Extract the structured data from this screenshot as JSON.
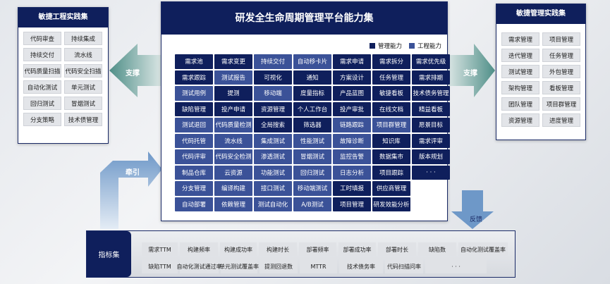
{
  "colors": {
    "management": "#0f1f5c",
    "engineering": "#3b5298",
    "arrow": "#5f9a95"
  },
  "left_panel": {
    "title": "敏捷工程实践集",
    "items": [
      "代码审查",
      "持续集成",
      "持续交付",
      "流水线",
      "代码质量扫描",
      "代码安全扫描",
      "自动化测试",
      "单元测试",
      "回归测试",
      "冒烟测试",
      "分支策略",
      "技术债管理"
    ]
  },
  "right_panel": {
    "title": "敏捷管理实践集",
    "items": [
      "需求管理",
      "项目管理",
      "迭代管理",
      "任务管理",
      "测试管理",
      "外包管理",
      "架构管理",
      "看板管理",
      "团队管理",
      "项目群管理",
      "资源管理",
      "进度管理"
    ]
  },
  "center": {
    "title": "研发全生命周期管理平台能力集",
    "legend": [
      {
        "label": "管理能力",
        "type": "d"
      },
      {
        "label": "工程能力",
        "type": "l"
      }
    ],
    "cells": [
      [
        "需求池",
        "d"
      ],
      [
        "需求变更",
        "d"
      ],
      [
        "持续交付",
        "l"
      ],
      [
        "自动移卡片",
        "l"
      ],
      [
        "需求申请",
        "d"
      ],
      [
        "需求拆分",
        "d"
      ],
      [
        "需求优先级",
        "d"
      ],
      [
        "需求跟踪",
        "d"
      ],
      [
        "测试报告",
        "l"
      ],
      [
        "可视化",
        "d"
      ],
      [
        "通知",
        "d"
      ],
      [
        "方案设计",
        "d"
      ],
      [
        "任务管理",
        "d"
      ],
      [
        "需求排期",
        "d"
      ],
      [
        "测试用例",
        "l"
      ],
      [
        "提测",
        "d"
      ],
      [
        "移动端",
        "l"
      ],
      [
        "度量指标",
        "d"
      ],
      [
        "产品蓝图",
        "d"
      ],
      [
        "敏捷看板",
        "d"
      ],
      [
        "技术债务管理",
        "d"
      ],
      [
        "缺陷管理",
        "d"
      ],
      [
        "投产申请",
        "d"
      ],
      [
        "资源管理",
        "d"
      ],
      [
        "个人工作台",
        "d"
      ],
      [
        "投产审批",
        "d"
      ],
      [
        "在线文档",
        "d"
      ],
      [
        "精益看板",
        "d"
      ],
      [
        "测试退回",
        "l"
      ],
      [
        "代码质量检测",
        "l"
      ],
      [
        "全局搜索",
        "d"
      ],
      [
        "筛选器",
        "d"
      ],
      [
        "链路跟踪",
        "l"
      ],
      [
        "项目群管理",
        "l"
      ],
      [
        "愿景目标",
        "d"
      ],
      [
        "代码托管",
        "l"
      ],
      [
        "流水线",
        "l"
      ],
      [
        "集成测试",
        "l"
      ],
      [
        "性能测试",
        "l"
      ],
      [
        "故障诊断",
        "l"
      ],
      [
        "知识库",
        "d"
      ],
      [
        "需求评审",
        "d"
      ],
      [
        "代码评审",
        "l"
      ],
      [
        "代码安全检测",
        "l"
      ],
      [
        "渗透测试",
        "l"
      ],
      [
        "冒烟测试",
        "l"
      ],
      [
        "监控告警",
        "l"
      ],
      [
        "数据集市",
        "d"
      ],
      [
        "版本规划",
        "d"
      ],
      [
        "制品仓库",
        "l"
      ],
      [
        "云资源",
        "l"
      ],
      [
        "功能测试",
        "l"
      ],
      [
        "回归测试",
        "l"
      ],
      [
        "日志分析",
        "l"
      ],
      [
        "项目跟踪",
        "d"
      ],
      [
        "· · ·",
        "d"
      ],
      [
        "分支管理",
        "l"
      ],
      [
        "编译构建",
        "l"
      ],
      [
        "接口测试",
        "l"
      ],
      [
        "移动端测试",
        "l"
      ],
      [
        "工时填报",
        "d"
      ],
      [
        "供应商管理",
        "d"
      ],
      null,
      [
        "自动部署",
        "l"
      ],
      [
        "依赖管理",
        "l"
      ],
      [
        "测试自动化",
        "l"
      ],
      [
        "A/B测试",
        "l"
      ],
      [
        "项目管理",
        "d"
      ],
      [
        "研发效能分析",
        "d"
      ],
      null
    ]
  },
  "arrows": {
    "left": "支撑",
    "right": "支撑",
    "pull": "牵引",
    "feedback": "反馈"
  },
  "metrics": {
    "title": "指标集",
    "row1": [
      "需求TTM",
      "构建频率",
      "构建成功率",
      "构建时长",
      "部署频率",
      "部署成功率",
      "部署时长",
      "缺陷数",
      "自动化测试覆盖率"
    ],
    "row2": [
      "缺陷TTM",
      "自动化测试通过率",
      "单元测试覆盖率",
      "提测回退数",
      "MTTR",
      "技术债务率",
      "代码扫描问率",
      "· · ·"
    ]
  }
}
